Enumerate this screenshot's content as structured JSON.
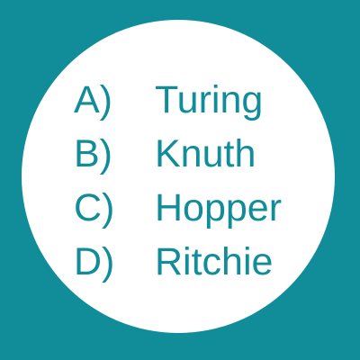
{
  "colors": {
    "background": "#118d9a",
    "circle": "#ffffff",
    "text": "#118d9a"
  },
  "options": [
    {
      "letter": "A)",
      "name": "Turing"
    },
    {
      "letter": "B)",
      "name": "Knuth"
    },
    {
      "letter": "C)",
      "name": "Hopper"
    },
    {
      "letter": "D)",
      "name": "Ritchie"
    }
  ]
}
